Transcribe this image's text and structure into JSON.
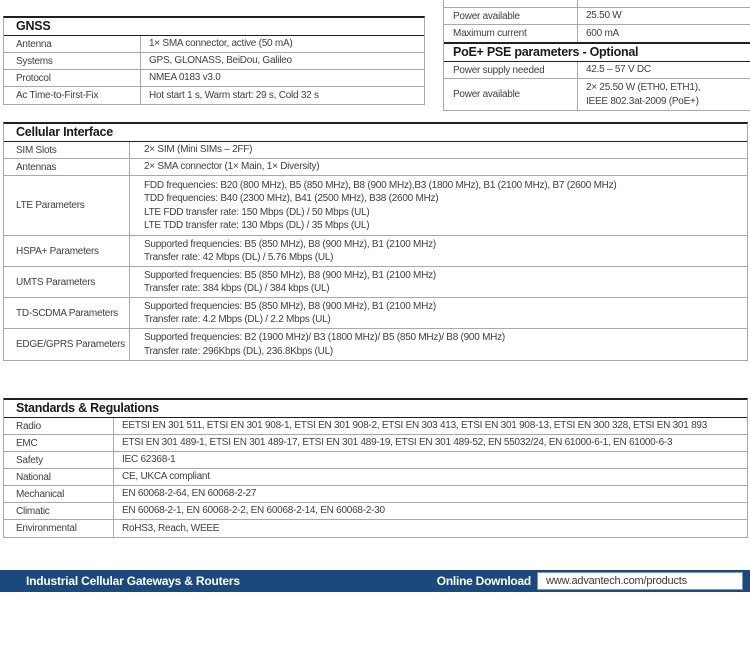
{
  "gnss_table": {
    "title": "GNSS",
    "rows": [
      {
        "label": "Antenna",
        "value": "1× SMA connector, active (50 mA)"
      },
      {
        "label": "Systems",
        "value": "GPS, GLONASS, BeiDou, Galileo"
      },
      {
        "label": "Protocol",
        "value": "NMEA 0183 v3.0"
      },
      {
        "label": "Ac Time-to-First-Fix",
        "value": "Hot start 1 s, Warm start: 29 s, Cold 32 s"
      }
    ]
  },
  "power_table": {
    "rows_top": [
      {
        "label": "Power available",
        "value": "25.50 W"
      },
      {
        "label": "Maximum current",
        "value": "600 mA"
      }
    ],
    "section_title": "PoE+ PSE parameters - Optional",
    "rows_poe": [
      {
        "label": "Power supply needed",
        "value": "42.5 – 57 V DC"
      },
      {
        "label": "Power available",
        "value": "2× 25.50 W (ETH0, ETH1),\nIEEE 802.3at-2009 (PoE+)"
      }
    ]
  },
  "cellular_table": {
    "title": "Cellular Interface",
    "rows": [
      {
        "label": "SIM Slots",
        "value": "2× SIM (Mini SIMs – 2FF)"
      },
      {
        "label": "Antennas",
        "value": "2× SMA connector (1× Main, 1× Diversity)"
      },
      {
        "label": "LTE Parameters",
        "value": "FDD frequencies: B20 (800 MHz), B5 (850 MHz), B8 (900 MHz),B3 (1800 MHz), B1 (2100 MHz), B7 (2600 MHz)\nTDD frequencies: B40 (2300 MHz), B41 (2500 MHz), B38 (2600 MHz)\nLTE FDD transfer rate: 150 Mbps (DL) / 50 Mbps (UL)\nLTE TDD transfer rate: 130 Mbps (DL) / 35 Mbps (UL)"
      },
      {
        "label": "HSPA+ Parameters",
        "value": "Supported frequencies: B5 (850 MHz), B8 (900 MHz), B1 (2100 MHz)\nTransfer rate: 42 Mbps (DL) / 5.76 Mbps (UL)"
      },
      {
        "label": "UMTS Parameters",
        "value": "Supported frequencies: B5 (850 MHz), B8 (900 MHz), B1 (2100 MHz)\nTransfer rate: 384 kbps (DL) / 384 kbps (UL)"
      },
      {
        "label": "TD-SCDMA Parameters",
        "value": "Supported frequencies: B5 (850 MHz), B8 (900 MHz), B1 (2100 MHz)\nTransfer rate: 4.2 Mbps (DL) / 2.2 Mbps (UL)"
      },
      {
        "label": "EDGE/GPRS Parameters",
        "value": "Supported frequencies: B2 (1900 MHz)/ B3 (1800 MHz)/ B5 (850 MHz)/ B8 (900 MHz)\nTransfer rate: 296Kbps (DL), 236.8Kbps (UL)"
      }
    ]
  },
  "standards_table": {
    "title": "Standards & Regulations",
    "rows": [
      {
        "label": "Radio",
        "value": "EETSI EN 301 511, ETSI EN 301 908-1, ETSI EN 301 908-2, ETSI EN 303 413, ETSI EN 301 908-13, ETSI EN 300 328, ETSI EN 301 893"
      },
      {
        "label": "EMC",
        "value": "ETSI EN 301 489-1, ETSI EN 301 489-17, ETSI EN 301 489-19, ETSI EN 301 489-52, EN 55032/24, EN 61000-6-1, EN 61000-6-3"
      },
      {
        "label": "Safety",
        "value": "IEC 62368-1"
      },
      {
        "label": "National",
        "value": "CE, UKCA compliant"
      },
      {
        "label": "Mechanical",
        "value": "EN 60068-2-64, EN 60068-2-27"
      },
      {
        "label": "Climatic",
        "value": "EN 60068-2-1, EN 60068-2-2, EN 60068-2-14, EN 60068-2-30"
      },
      {
        "label": "Environmental",
        "value": "RoHS3, Reach, WEEE"
      }
    ]
  },
  "footer": {
    "product_line": "Industrial Cellular Gateways & Routers",
    "download_label": "Online Download",
    "download_url": "www.advantech.com/products"
  },
  "colors": {
    "footer_bar": "#1a4a7d",
    "table_heavy_border": "#231f20",
    "table_light_border": "#a7a9ac",
    "body_text": "#414042"
  }
}
